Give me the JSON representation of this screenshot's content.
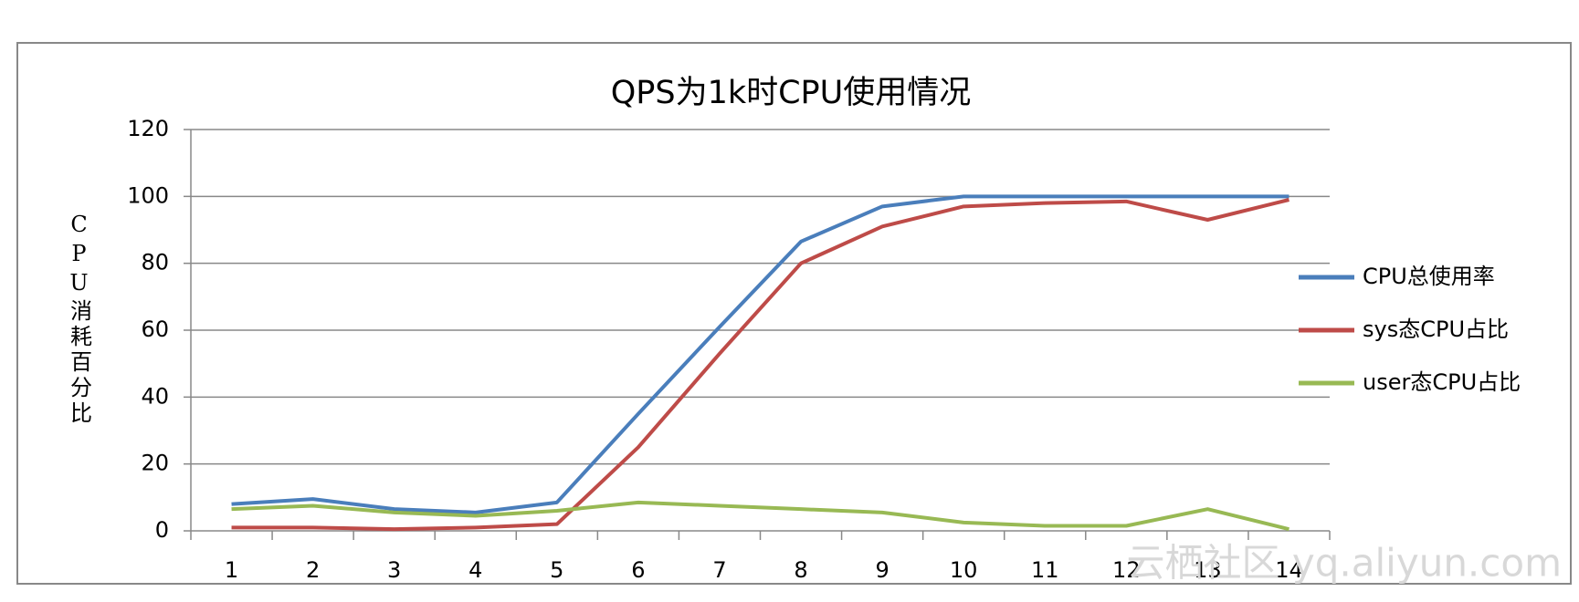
{
  "chart_data": {
    "type": "line",
    "title": "QPS为1k时CPU使用情况",
    "y_label": "CPU消耗百分比",
    "categories": [
      "1",
      "2",
      "3",
      "4",
      "5",
      "6",
      "7",
      "8",
      "9",
      "10",
      "11",
      "12",
      "13",
      "14"
    ],
    "series": [
      {
        "name": "CPU总使用率",
        "color": "#4a7ebb",
        "values": [
          8,
          9.5,
          6.5,
          5.5,
          8.5,
          35,
          61,
          86.5,
          97,
          100,
          100,
          100,
          100,
          100
        ]
      },
      {
        "name": "sys态CPU占比",
        "color": "#be4b48",
        "values": [
          1,
          1,
          0.5,
          1,
          2,
          25,
          53,
          80,
          91,
          97,
          98,
          98.5,
          93,
          99
        ]
      },
      {
        "name": "user态CPU占比",
        "color": "#98b954",
        "values": [
          6.5,
          7.5,
          5.5,
          4.5,
          6,
          8.5,
          7.5,
          6.5,
          5.5,
          2.5,
          1.5,
          1.5,
          6.5,
          0.5
        ]
      }
    ],
    "ylim": [
      0,
      120
    ],
    "yticks": [
      0,
      20,
      40,
      60,
      80,
      100,
      120
    ],
    "grid": true,
    "legend": "right",
    "watermark": "云栖社区 yq.aliyun.com"
  }
}
